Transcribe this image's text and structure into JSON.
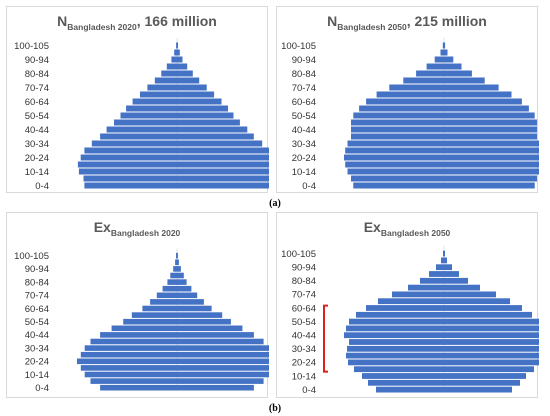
{
  "labels": {
    "a": "(a)",
    "b": "(b)"
  },
  "chart_data": [
    {
      "type": "bar",
      "orientation": "horizontal",
      "title_main": "N",
      "title_sub": "Bangladesh 2020",
      "title_rest": ", 166 million",
      "categories": [
        "0-4",
        "5-9",
        "10-14",
        "15-19",
        "20-24",
        "25-29",
        "30-34",
        "35-39",
        "40-44",
        "45-49",
        "50-54",
        "55-59",
        "60-64",
        "65-69",
        "70-74",
        "75-79",
        "80-84",
        "85-89",
        "90-94",
        "95-99",
        "100-105"
      ],
      "tick_labels": [
        "0-4",
        "10-14",
        "20-24",
        "30-34",
        "40-44",
        "50-54",
        "60-64",
        "70-74",
        "80-84",
        "90-94",
        "100-105"
      ],
      "values": [
        100,
        101,
        106,
        107,
        104,
        100,
        92,
        83,
        76,
        68,
        61,
        55,
        48,
        40,
        32,
        24,
        17,
        11,
        6,
        3,
        1
      ],
      "color": "#4472c4",
      "grid": false
    },
    {
      "type": "bar",
      "orientation": "horizontal",
      "title_main": "N",
      "title_sub": "Bangladesh 2050",
      "title_rest": ", 215 million",
      "categories": [
        "0-4",
        "5-9",
        "10-14",
        "15-19",
        "20-24",
        "25-29",
        "30-34",
        "35-39",
        "40-44",
        "45-49",
        "50-54",
        "55-59",
        "60-64",
        "65-69",
        "70-74",
        "75-79",
        "80-84",
        "85-89",
        "90-94",
        "95-99",
        "100-105"
      ],
      "tick_labels": [
        "0-4",
        "10-14",
        "20-24",
        "30-34",
        "40-44",
        "50-54",
        "60-64",
        "70-74",
        "80-84",
        "90-94",
        "100-105"
      ],
      "values": [
        78,
        80,
        83,
        85,
        86,
        85,
        83,
        80,
        80,
        80,
        78,
        73,
        67,
        58,
        47,
        35,
        24,
        15,
        8,
        3,
        1
      ],
      "color": "#4472c4",
      "grid": false
    },
    {
      "type": "bar",
      "orientation": "horizontal",
      "title_main": "Ex",
      "title_sub": "Bangladesh 2020",
      "title_rest": "",
      "categories": [
        "0-4",
        "5-9",
        "10-14",
        "15-19",
        "20-24",
        "25-29",
        "30-34",
        "35-39",
        "40-44",
        "45-49",
        "50-54",
        "55-59",
        "60-64",
        "65-69",
        "70-74",
        "75-79",
        "80-84",
        "85-89",
        "90-94",
        "95-99",
        "100-105"
      ],
      "tick_labels": [
        "0-4",
        "10-14",
        "20-24",
        "30-34",
        "40-44",
        "50-54",
        "60-64",
        "70-74",
        "80-84",
        "90-94",
        "100-105"
      ],
      "values": [
        80,
        90,
        96,
        100,
        104,
        100,
        96,
        90,
        80,
        68,
        56,
        47,
        36,
        28,
        21,
        15,
        10,
        7,
        4,
        2,
        1
      ],
      "color": "#4472c4",
      "grid": false
    },
    {
      "type": "bar",
      "orientation": "horizontal",
      "title_main": "Ex",
      "title_sub": "Bangladesh 2050",
      "title_rest": "",
      "categories": [
        "0-4",
        "5-9",
        "10-14",
        "15-19",
        "20-24",
        "25-29",
        "30-34",
        "35-39",
        "40-44",
        "45-49",
        "50-54",
        "55-59",
        "60-64",
        "65-69",
        "70-74",
        "75-79",
        "80-84",
        "85-89",
        "90-94",
        "95-99",
        "100-105"
      ],
      "tick_labels": [
        "0-4",
        "10-14",
        "20-24",
        "30-34",
        "40-44",
        "50-54",
        "60-64",
        "70-74",
        "80-84",
        "90-94",
        "100-105"
      ],
      "values": [
        68,
        76,
        82,
        90,
        96,
        98,
        97,
        95,
        100,
        98,
        95,
        88,
        78,
        66,
        52,
        36,
        24,
        15,
        8,
        3,
        1
      ],
      "color": "#4472c4",
      "grid": false,
      "annotation": {
        "type": "bracket",
        "color": "#e0201b",
        "from_category": "15-19",
        "to_category": "60-64"
      }
    }
  ]
}
